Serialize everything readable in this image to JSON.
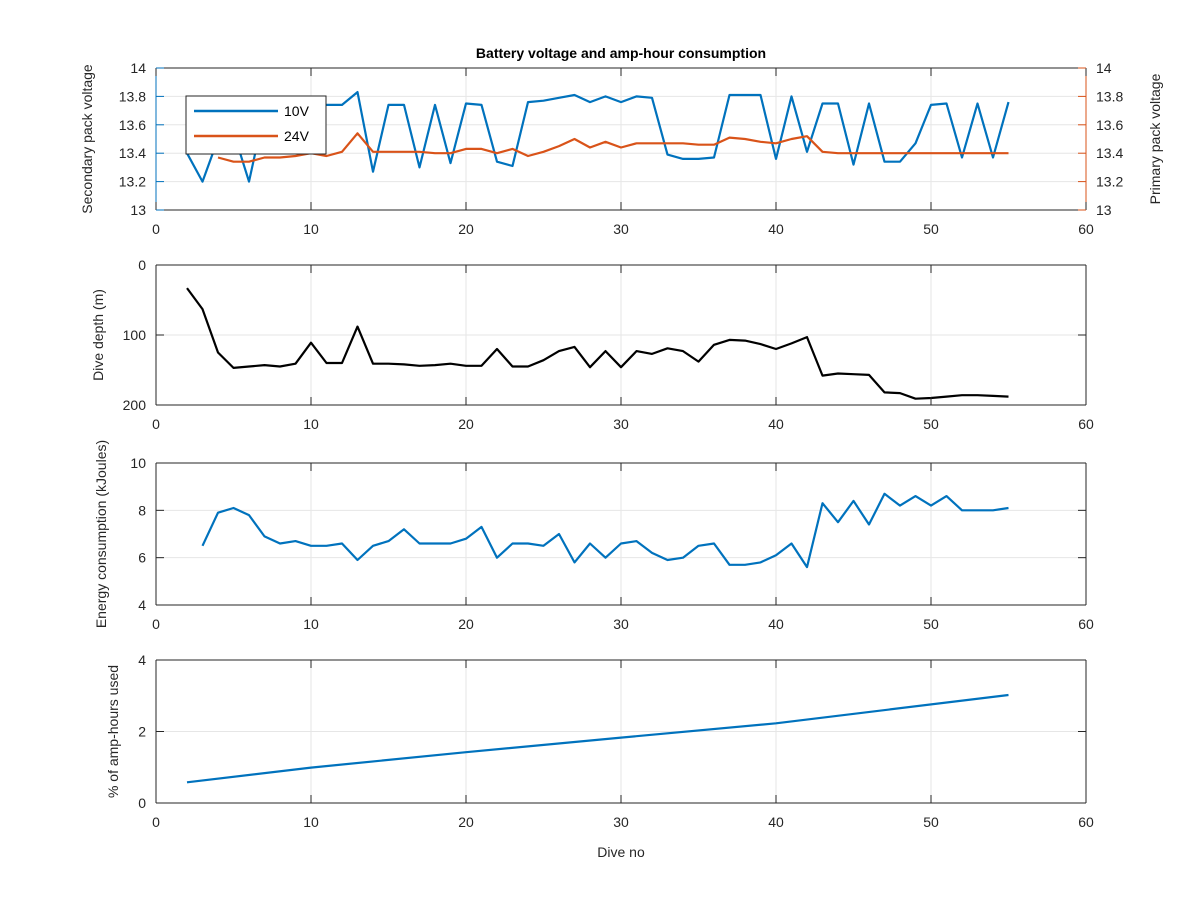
{
  "colors": {
    "blue": "#0072bd",
    "orange": "#d95319",
    "black": "#000000",
    "axis": "#262626",
    "grid": "#e6e6e6"
  },
  "chart_data": [
    {
      "type": "line",
      "title": "Battery voltage and amp-hour consumption",
      "xlabel": "",
      "ylabel": "Secondary pack voltage",
      "ylabel_right": "Primary pack voltage",
      "xlim": [
        0,
        60
      ],
      "ylim": [
        13,
        14
      ],
      "ylim_right": [
        13,
        14
      ],
      "xticks": [
        "0",
        "10",
        "20",
        "30",
        "40",
        "50",
        "60"
      ],
      "yticks": [
        "13",
        "13.2",
        "13.4",
        "13.6",
        "13.8",
        "14"
      ],
      "yticks_right": [
        "13",
        "13.2",
        "13.4",
        "13.6",
        "13.8",
        "14"
      ],
      "grid": true,
      "legend": "top-left",
      "series": [
        {
          "name": "10V",
          "axis": "left",
          "color": "blue",
          "x": [
            2,
            3,
            4,
            5,
            6,
            7,
            8,
            9,
            10,
            11,
            12,
            13,
            14,
            15,
            16,
            17,
            18,
            19,
            20,
            21,
            22,
            23,
            24,
            25,
            26,
            27,
            28,
            29,
            30,
            31,
            32,
            33,
            34,
            35,
            36,
            37,
            38,
            39,
            40,
            41,
            42,
            43,
            44,
            45,
            46,
            47,
            48,
            49,
            50,
            51,
            52,
            53,
            54,
            55
          ],
          "values": [
            13.4,
            13.2,
            13.5,
            13.55,
            13.2,
            13.7,
            13.74,
            13.74,
            13.74,
            13.74,
            13.74,
            13.83,
            13.27,
            13.74,
            13.74,
            13.3,
            13.74,
            13.33,
            13.75,
            13.74,
            13.34,
            13.31,
            13.76,
            13.77,
            13.79,
            13.81,
            13.76,
            13.8,
            13.76,
            13.8,
            13.79,
            13.39,
            13.36,
            13.36,
            13.37,
            13.81,
            13.81,
            13.81,
            13.36,
            13.8,
            13.41,
            13.75,
            13.75,
            13.32,
            13.75,
            13.34,
            13.34,
            13.47,
            13.74,
            13.75,
            13.37,
            13.75,
            13.37,
            13.76
          ]
        },
        {
          "name": "24V",
          "axis": "right",
          "color": "orange",
          "x": [
            4,
            5,
            6,
            7,
            8,
            9,
            10,
            11,
            12,
            13,
            14,
            15,
            16,
            17,
            18,
            19,
            20,
            21,
            22,
            23,
            24,
            25,
            26,
            27,
            28,
            29,
            30,
            31,
            32,
            33,
            34,
            35,
            36,
            37,
            38,
            39,
            40,
            41,
            42,
            43,
            44,
            45,
            46,
            47,
            48,
            49,
            50,
            51,
            52,
            53,
            54,
            55
          ],
          "values": [
            13.37,
            13.34,
            13.34,
            13.37,
            13.37,
            13.38,
            13.4,
            13.38,
            13.41,
            13.54,
            13.41,
            13.41,
            13.41,
            13.41,
            13.4,
            13.4,
            13.43,
            13.43,
            13.4,
            13.43,
            13.38,
            13.41,
            13.45,
            13.5,
            13.44,
            13.48,
            13.44,
            13.47,
            13.47,
            13.47,
            13.47,
            13.46,
            13.46,
            13.51,
            13.5,
            13.48,
            13.47,
            13.5,
            13.52,
            13.41,
            13.4,
            13.4,
            13.4,
            13.4,
            13.4,
            13.4,
            13.4,
            13.4,
            13.4,
            13.4,
            13.4,
            13.4
          ]
        }
      ]
    },
    {
      "type": "line",
      "xlabel": "",
      "ylabel": "Dive depth (m)",
      "xlim": [
        0,
        60
      ],
      "ylim": [
        0,
        200
      ],
      "y_reversed": true,
      "xticks": [
        "0",
        "10",
        "20",
        "30",
        "40",
        "50",
        "60"
      ],
      "yticks": [
        "0",
        "100",
        "200"
      ],
      "grid": true,
      "series": [
        {
          "color": "black",
          "x": [
            2,
            3,
            4,
            5,
            6,
            7,
            8,
            9,
            10,
            11,
            12,
            13,
            14,
            15,
            16,
            17,
            18,
            19,
            20,
            21,
            22,
            23,
            24,
            25,
            26,
            27,
            28,
            29,
            30,
            31,
            32,
            33,
            34,
            35,
            36,
            37,
            38,
            39,
            40,
            41,
            42,
            43,
            44,
            45,
            46,
            47,
            48,
            49,
            50,
            51,
            52,
            53,
            54,
            55
          ],
          "values": [
            33,
            63,
            125,
            147,
            145,
            143,
            145,
            141,
            111,
            140,
            140,
            88,
            141,
            141,
            142,
            144,
            143,
            141,
            144,
            144,
            120,
            145,
            145,
            136,
            123,
            117,
            146,
            123,
            146,
            123,
            127,
            119,
            123,
            138,
            114,
            107,
            108,
            113,
            120,
            112,
            103,
            158,
            155,
            156,
            157,
            182,
            183,
            191,
            190,
            188,
            186,
            186,
            187,
            188
          ]
        }
      ]
    },
    {
      "type": "line",
      "xlabel": "",
      "ylabel": "Energy consumption (kJoules)",
      "xlim": [
        0,
        60
      ],
      "ylim": [
        4,
        10
      ],
      "xticks": [
        "0",
        "10",
        "20",
        "30",
        "40",
        "50",
        "60"
      ],
      "yticks": [
        "4",
        "6",
        "8",
        "10"
      ],
      "grid": true,
      "series": [
        {
          "color": "blue",
          "x": [
            3,
            4,
            5,
            6,
            7,
            8,
            9,
            10,
            11,
            12,
            13,
            14,
            15,
            16,
            17,
            18,
            19,
            20,
            21,
            22,
            23,
            24,
            25,
            26,
            27,
            28,
            29,
            30,
            31,
            32,
            33,
            34,
            35,
            36,
            37,
            38,
            39,
            40,
            41,
            42,
            43,
            44,
            45,
            46,
            47,
            48,
            49,
            50,
            51,
            52,
            53,
            54,
            55
          ],
          "values": [
            6.5,
            7.9,
            8.1,
            7.8,
            6.9,
            6.6,
            6.7,
            6.5,
            6.5,
            6.6,
            5.9,
            6.5,
            6.7,
            7.2,
            6.6,
            6.6,
            6.6,
            6.8,
            7.3,
            6.0,
            6.6,
            6.6,
            6.5,
            7.0,
            5.8,
            6.6,
            6.0,
            6.6,
            6.7,
            6.2,
            5.9,
            6.0,
            6.5,
            6.6,
            5.7,
            5.7,
            5.8,
            6.1,
            6.6,
            5.6,
            8.3,
            7.5,
            8.4,
            7.4,
            8.7,
            8.2,
            8.6,
            8.2,
            8.6,
            8.0,
            8.0,
            8.0,
            8.1
          ]
        }
      ]
    },
    {
      "type": "line",
      "xlabel": "Dive no",
      "ylabel": "% of amp-hours used",
      "xlim": [
        0,
        60
      ],
      "ylim": [
        0,
        4
      ],
      "xticks": [
        "0",
        "10",
        "20",
        "30",
        "40",
        "50",
        "60"
      ],
      "yticks": [
        "0",
        "2",
        "4"
      ],
      "grid": true,
      "series": [
        {
          "color": "blue",
          "x": [
            2,
            10,
            20,
            30,
            40,
            55
          ],
          "values": [
            0.58,
            0.99,
            1.42,
            1.83,
            2.23,
            3.02
          ]
        }
      ]
    }
  ]
}
